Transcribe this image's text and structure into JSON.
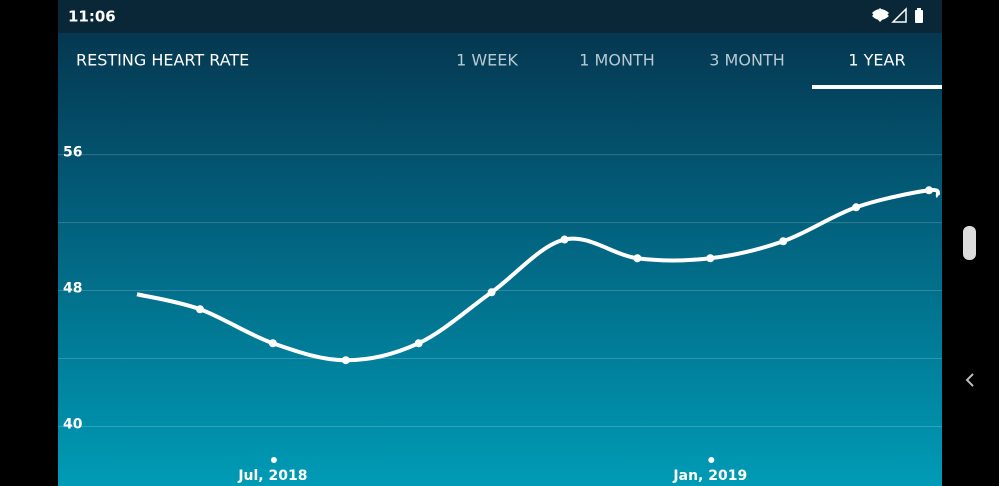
{
  "status_bar": {
    "time": "11:06"
  },
  "header": {
    "title": "RESTING HEART RATE",
    "tabs": [
      "1 WEEK",
      "1 MONTH",
      "3 MONTH",
      "1 YEAR"
    ],
    "selected_tab": 3
  },
  "chart_data": {
    "type": "line",
    "categories": [
      null,
      "Jul, 2018",
      null,
      null,
      null,
      null,
      null,
      "Jan, 2019",
      null,
      null,
      null
    ],
    "series": [
      {
        "name": "Resting heart rate",
        "color": "#ffffff",
        "values": [
          46.9,
          44.9,
          43.9,
          44.9,
          47.9,
          51.0,
          49.9,
          49.9,
          50.9,
          52.9,
          53.9
        ]
      }
    ],
    "ylim": [
      36.5,
      59.8
    ],
    "yticks": [
      40,
      48,
      56
    ],
    "grid_lines": [
      40,
      44,
      48,
      52,
      56
    ],
    "grid": true
  }
}
